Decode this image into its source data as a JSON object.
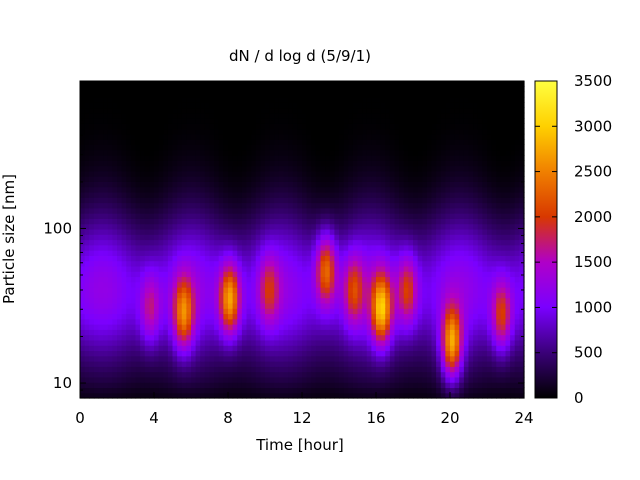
{
  "chart_data": {
    "type": "heatmap",
    "title": "dN / d log d (5/9/1)",
    "xlabel": "Time [hour]",
    "ylabel": "Particle size [nm]",
    "xlim": [
      0,
      24
    ],
    "x_ticks": [
      0,
      4,
      8,
      12,
      16,
      20,
      24
    ],
    "ylim": [
      8,
      900
    ],
    "y_scale": "log",
    "y_ticks": [
      10,
      100
    ],
    "colorbar": {
      "range": [
        0,
        3500
      ],
      "ticks": [
        0,
        500,
        1000,
        1500,
        2000,
        2500,
        3000,
        3500
      ],
      "palette": [
        "#000000",
        "#3a0078",
        "#7a00ff",
        "#b000c8",
        "#d83800",
        "#f08000",
        "#ffd000",
        "#ffff40"
      ]
    },
    "events": [
      {
        "time": 3.8,
        "size": 30,
        "peak": 1900
      },
      {
        "time": 5.6,
        "size": 28,
        "peak": 2600
      },
      {
        "time": 8.1,
        "size": 35,
        "peak": 2900
      },
      {
        "time": 10.2,
        "size": 40,
        "peak": 1900
      },
      {
        "time": 13.3,
        "size": 55,
        "peak": 2600
      },
      {
        "time": 14.8,
        "size": 40,
        "peak": 2100
      },
      {
        "time": 16.3,
        "size": 30,
        "peak": 3000
      },
      {
        "time": 17.7,
        "size": 40,
        "peak": 2200
      },
      {
        "time": 20.1,
        "size": 18,
        "peak": 3100
      },
      {
        "time": 22.8,
        "size": 27,
        "peak": 2300
      }
    ]
  }
}
